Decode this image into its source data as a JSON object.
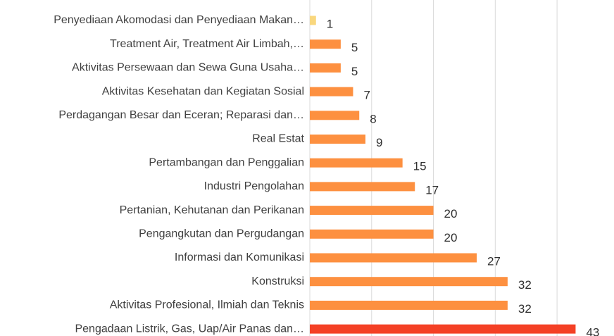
{
  "chart_data": {
    "type": "bar",
    "orientation": "horizontal",
    "categories": [
      "Penyediaan Akomodasi dan Penyediaan Makan…",
      "Treatment Air, Treatment Air Limbah,…",
      "Aktivitas Persewaan dan Sewa Guna Usaha…",
      "Aktivitas Kesehatan dan Kegiatan Sosial",
      "Perdagangan Besar dan Eceran; Reparasi dan…",
      "Real Estat",
      "Pertambangan dan Penggalian",
      "Industri Pengolahan",
      "Pertanian, Kehutanan dan Perikanan",
      "Pengangkutan dan Pergudangan",
      "Informasi dan Komunikasi",
      "Konstruksi",
      "Aktivitas Profesional, Ilmiah dan Teknis",
      "Pengadaan Listrik, Gas, Uap/Air Panas dan…"
    ],
    "values": [
      1,
      5,
      5,
      7,
      8,
      9,
      15,
      17,
      20,
      20,
      27,
      32,
      32,
      43
    ],
    "colors": [
      "#f9d77e",
      "#fd9040",
      "#fd9040",
      "#fd9040",
      "#fd9040",
      "#fd9040",
      "#fd9040",
      "#fd9040",
      "#fd9040",
      "#fd9040",
      "#fd9040",
      "#fd9040",
      "#fd9040",
      "#f44025"
    ],
    "xlim": [
      0,
      45
    ],
    "xticks": [
      0,
      10,
      20,
      30,
      40
    ],
    "grid": true
  }
}
